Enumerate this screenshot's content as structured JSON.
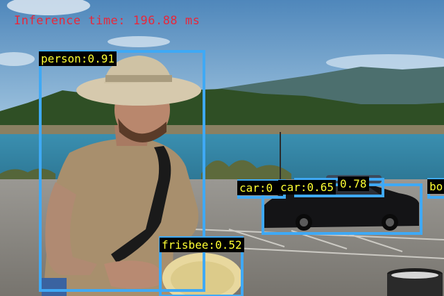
{
  "inference_text": "Inference time: 196.88 ms",
  "colors": {
    "box": "#3fa9f5",
    "label_bg": "#000000",
    "label_text": "#ffff33",
    "inference_text": "#e8273a"
  },
  "detections": [
    {
      "label": "person:0.91"
    },
    {
      "label": "frisbee:0.52"
    },
    {
      "label": "car:0"
    },
    {
      "label": "car:0.65"
    },
    {
      "label": "0.78"
    },
    {
      "label": "bo"
    }
  ]
}
